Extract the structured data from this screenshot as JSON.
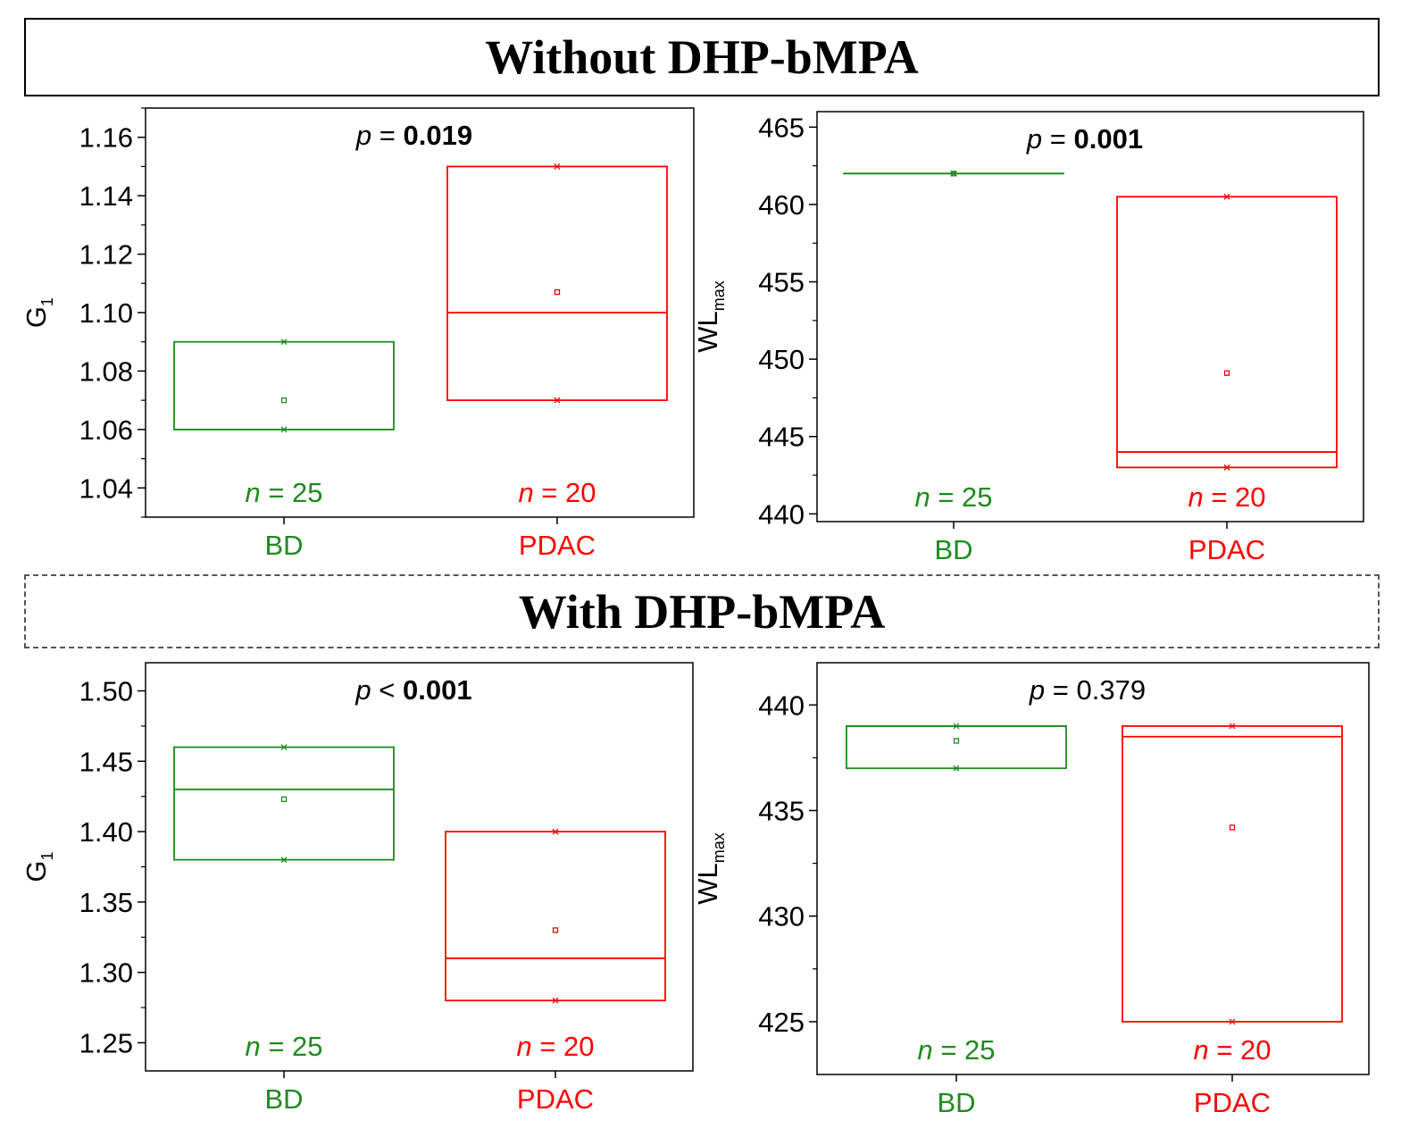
{
  "sections": {
    "top_title": "Without DHP-bMPA",
    "bottom_title": "With DHP-bMPA"
  },
  "colors": {
    "BD": "#1f8a1f",
    "PDAC": "#ff0000",
    "axis": "#000000"
  },
  "chart_data": [
    {
      "id": "top-left",
      "type": "box",
      "ylabel": {
        "main": "G",
        "sub": "1"
      },
      "ylim": [
        1.03,
        1.17
      ],
      "yticks": [
        1.04,
        1.06,
        1.08,
        1.1,
        1.12,
        1.14,
        1.16
      ],
      "ytick_labels": [
        "1.04",
        "1.06",
        "1.08",
        "1.10",
        "1.12",
        "1.14",
        "1.16"
      ],
      "ytick_minor": [
        1.03,
        1.05,
        1.07,
        1.09,
        1.11,
        1.13,
        1.15,
        1.17
      ],
      "p": {
        "italic": "p",
        "op": "=",
        "value": "0.019",
        "bold": true
      },
      "groups": [
        {
          "name": "BD",
          "n_label": "25",
          "q1": 1.06,
          "median": 1.06,
          "q3": 1.09,
          "mean": 1.07,
          "min": 1.06,
          "max": 1.09
        },
        {
          "name": "PDAC",
          "n_label": "20",
          "q1": 1.07,
          "median": 1.1,
          "q3": 1.15,
          "mean": 1.107,
          "min": 1.07,
          "max": 1.15
        }
      ]
    },
    {
      "id": "top-right",
      "type": "box",
      "ylabel": {
        "main": "WL",
        "sub": "max"
      },
      "ylim": [
        439.5,
        466
      ],
      "yticks": [
        440,
        445,
        450,
        455,
        460,
        465
      ],
      "ytick_labels": [
        "440",
        "445",
        "450",
        "455",
        "460",
        "465"
      ],
      "ytick_minor": [
        442.5,
        447.5,
        452.5,
        457.5,
        462.5
      ],
      "p": {
        "italic": "p",
        "op": "=",
        "value": "0.001",
        "bold": true
      },
      "groups": [
        {
          "name": "BD",
          "n_label": "25",
          "q1": 462,
          "median": 462,
          "q3": 462,
          "mean": 462,
          "min": 462,
          "max": 462
        },
        {
          "name": "PDAC",
          "n_label": "20",
          "q1": 443,
          "median": 444,
          "q3": 460.5,
          "mean": 449.1,
          "min": 443,
          "max": 460.5
        }
      ]
    },
    {
      "id": "bottom-left",
      "type": "box",
      "ylabel": {
        "main": "G",
        "sub": "1"
      },
      "ylim": [
        1.23,
        1.52
      ],
      "yticks": [
        1.25,
        1.3,
        1.35,
        1.4,
        1.45,
        1.5
      ],
      "ytick_labels": [
        "1.25",
        "1.30",
        "1.35",
        "1.40",
        "1.45",
        "1.50"
      ],
      "ytick_minor": [
        1.275,
        1.325,
        1.375,
        1.425,
        1.475
      ],
      "p": {
        "italic": "p",
        "op": "<",
        "value": "0.001",
        "bold": true
      },
      "groups": [
        {
          "name": "BD",
          "n_label": "25",
          "q1": 1.38,
          "median": 1.43,
          "q3": 1.46,
          "mean": 1.423,
          "min": 1.38,
          "max": 1.46
        },
        {
          "name": "PDAC",
          "n_label": "20",
          "q1": 1.28,
          "median": 1.31,
          "q3": 1.4,
          "mean": 1.33,
          "min": 1.28,
          "max": 1.4
        }
      ]
    },
    {
      "id": "bottom-right",
      "type": "box",
      "ylabel": {
        "main": "WL",
        "sub": "max"
      },
      "ylim": [
        422.5,
        442
      ],
      "yticks": [
        425,
        430,
        435,
        440
      ],
      "ytick_labels": [
        "425",
        "430",
        "435",
        "440"
      ],
      "ytick_minor": [
        427.5,
        432.5,
        437.5
      ],
      "p": {
        "italic": "p",
        "op": "=",
        "value": "0.379",
        "bold": false
      },
      "groups": [
        {
          "name": "BD",
          "n_label": "25",
          "q1": 437,
          "median": 439,
          "q3": 439,
          "mean": 438.3,
          "min": 437,
          "max": 439
        },
        {
          "name": "PDAC",
          "n_label": "20",
          "q1": 425,
          "median": 438.5,
          "q3": 439,
          "mean": 434.2,
          "min": 425,
          "max": 439
        }
      ]
    }
  ]
}
